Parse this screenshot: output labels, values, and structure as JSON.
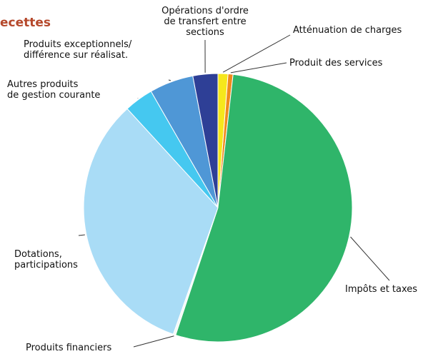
{
  "chart_data": {
    "type": "pie",
    "title": "ecettes",
    "categories": [
      "Atténuation de charges",
      "Produit des services",
      "Impôts et taxes",
      "Produits financiers",
      "Dotations,\nparticipations",
      "Autres produits\nde gestion courante",
      "Produits exceptionnels/\ndifférence sur réalisat.",
      "Opérations d'ordre\nde transfert entre\nsections"
    ],
    "values": [
      1.2,
      0.6,
      53.3,
      0.3,
      32.8,
      3.5,
      5.3,
      3.0
    ],
    "colors": [
      "#f6e71c",
      "#f08a1c",
      "#2fb56a",
      "#f4f8f6",
      "#a9dcf6",
      "#45c8f0",
      "#4f97d6",
      "#2e3f96"
    ]
  }
}
